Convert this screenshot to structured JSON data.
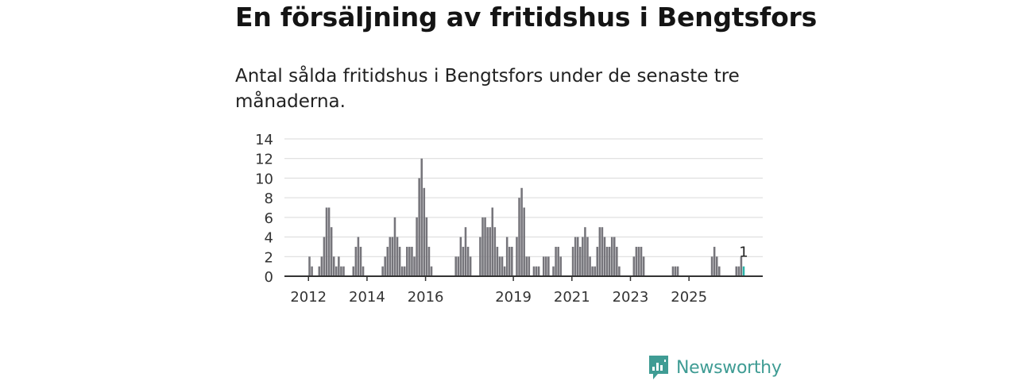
{
  "title": "En försäljning av fritidshus i Bengtsfors",
  "subtitle": "Antal sålda fritidshus i Bengtsfors under de senaste tre månaderna.",
  "brand": {
    "name": "Newsworthy",
    "color": "#3f9c94"
  },
  "colors": {
    "bar": "#76757b",
    "highlight": "#2bb3a8",
    "grid": "#d9d9d9",
    "axis": "#333333"
  },
  "chart_data": {
    "type": "bar",
    "title": "",
    "xlabel": "",
    "ylabel": "",
    "ylim": [
      0,
      14
    ],
    "yticks": [
      0,
      2,
      4,
      6,
      8,
      10,
      12,
      14
    ],
    "xtick_labels": [
      {
        "label": "2012",
        "year": 2012
      },
      {
        "label": "2014",
        "year": 2014
      },
      {
        "label": "2016",
        "year": 2016
      },
      {
        "label": "2019",
        "year": 2019
      },
      {
        "label": "2021",
        "year": 2021
      },
      {
        "label": "2023",
        "year": 2023
      },
      {
        "label": "2025",
        "year": 2025
      }
    ],
    "grid": true,
    "start_year": 2011,
    "periods_per_year": 12,
    "highlight_value_label": "1",
    "values": [
      0,
      0,
      0,
      0,
      0,
      0,
      0,
      0,
      0,
      0,
      0,
      0,
      2,
      1,
      0,
      0,
      1,
      2,
      4,
      7,
      7,
      5,
      2,
      1,
      2,
      1,
      1,
      0,
      0,
      0,
      1,
      3,
      4,
      3,
      1,
      0,
      0,
      0,
      0,
      0,
      0,
      0,
      1,
      2,
      3,
      4,
      4,
      6,
      4,
      3,
      1,
      1,
      3,
      3,
      3,
      2,
      6,
      10,
      12,
      9,
      6,
      3,
      1,
      0,
      0,
      0,
      0,
      0,
      0,
      0,
      0,
      0,
      2,
      2,
      4,
      3,
      5,
      3,
      2,
      0,
      0,
      0,
      4,
      6,
      6,
      5,
      5,
      7,
      5,
      3,
      2,
      2,
      1,
      4,
      3,
      3,
      0,
      4,
      8,
      9,
      7,
      2,
      2,
      0,
      1,
      1,
      1,
      0,
      2,
      2,
      2,
      0,
      1,
      3,
      3,
      2,
      0,
      0,
      0,
      0,
      3,
      4,
      4,
      3,
      4,
      5,
      4,
      2,
      1,
      1,
      3,
      5,
      5,
      4,
      3,
      3,
      4,
      4,
      3,
      1,
      0,
      0,
      0,
      0,
      0,
      2,
      3,
      3,
      3,
      2,
      0,
      0,
      0,
      0,
      0,
      0,
      0,
      0,
      0,
      0,
      0,
      1,
      1,
      1,
      0,
      0,
      0,
      0,
      0,
      0,
      0,
      0,
      0,
      0,
      0,
      0,
      0,
      2,
      3,
      2,
      1,
      0,
      0,
      0,
      0,
      0,
      0,
      1,
      1,
      2,
      1
    ]
  }
}
